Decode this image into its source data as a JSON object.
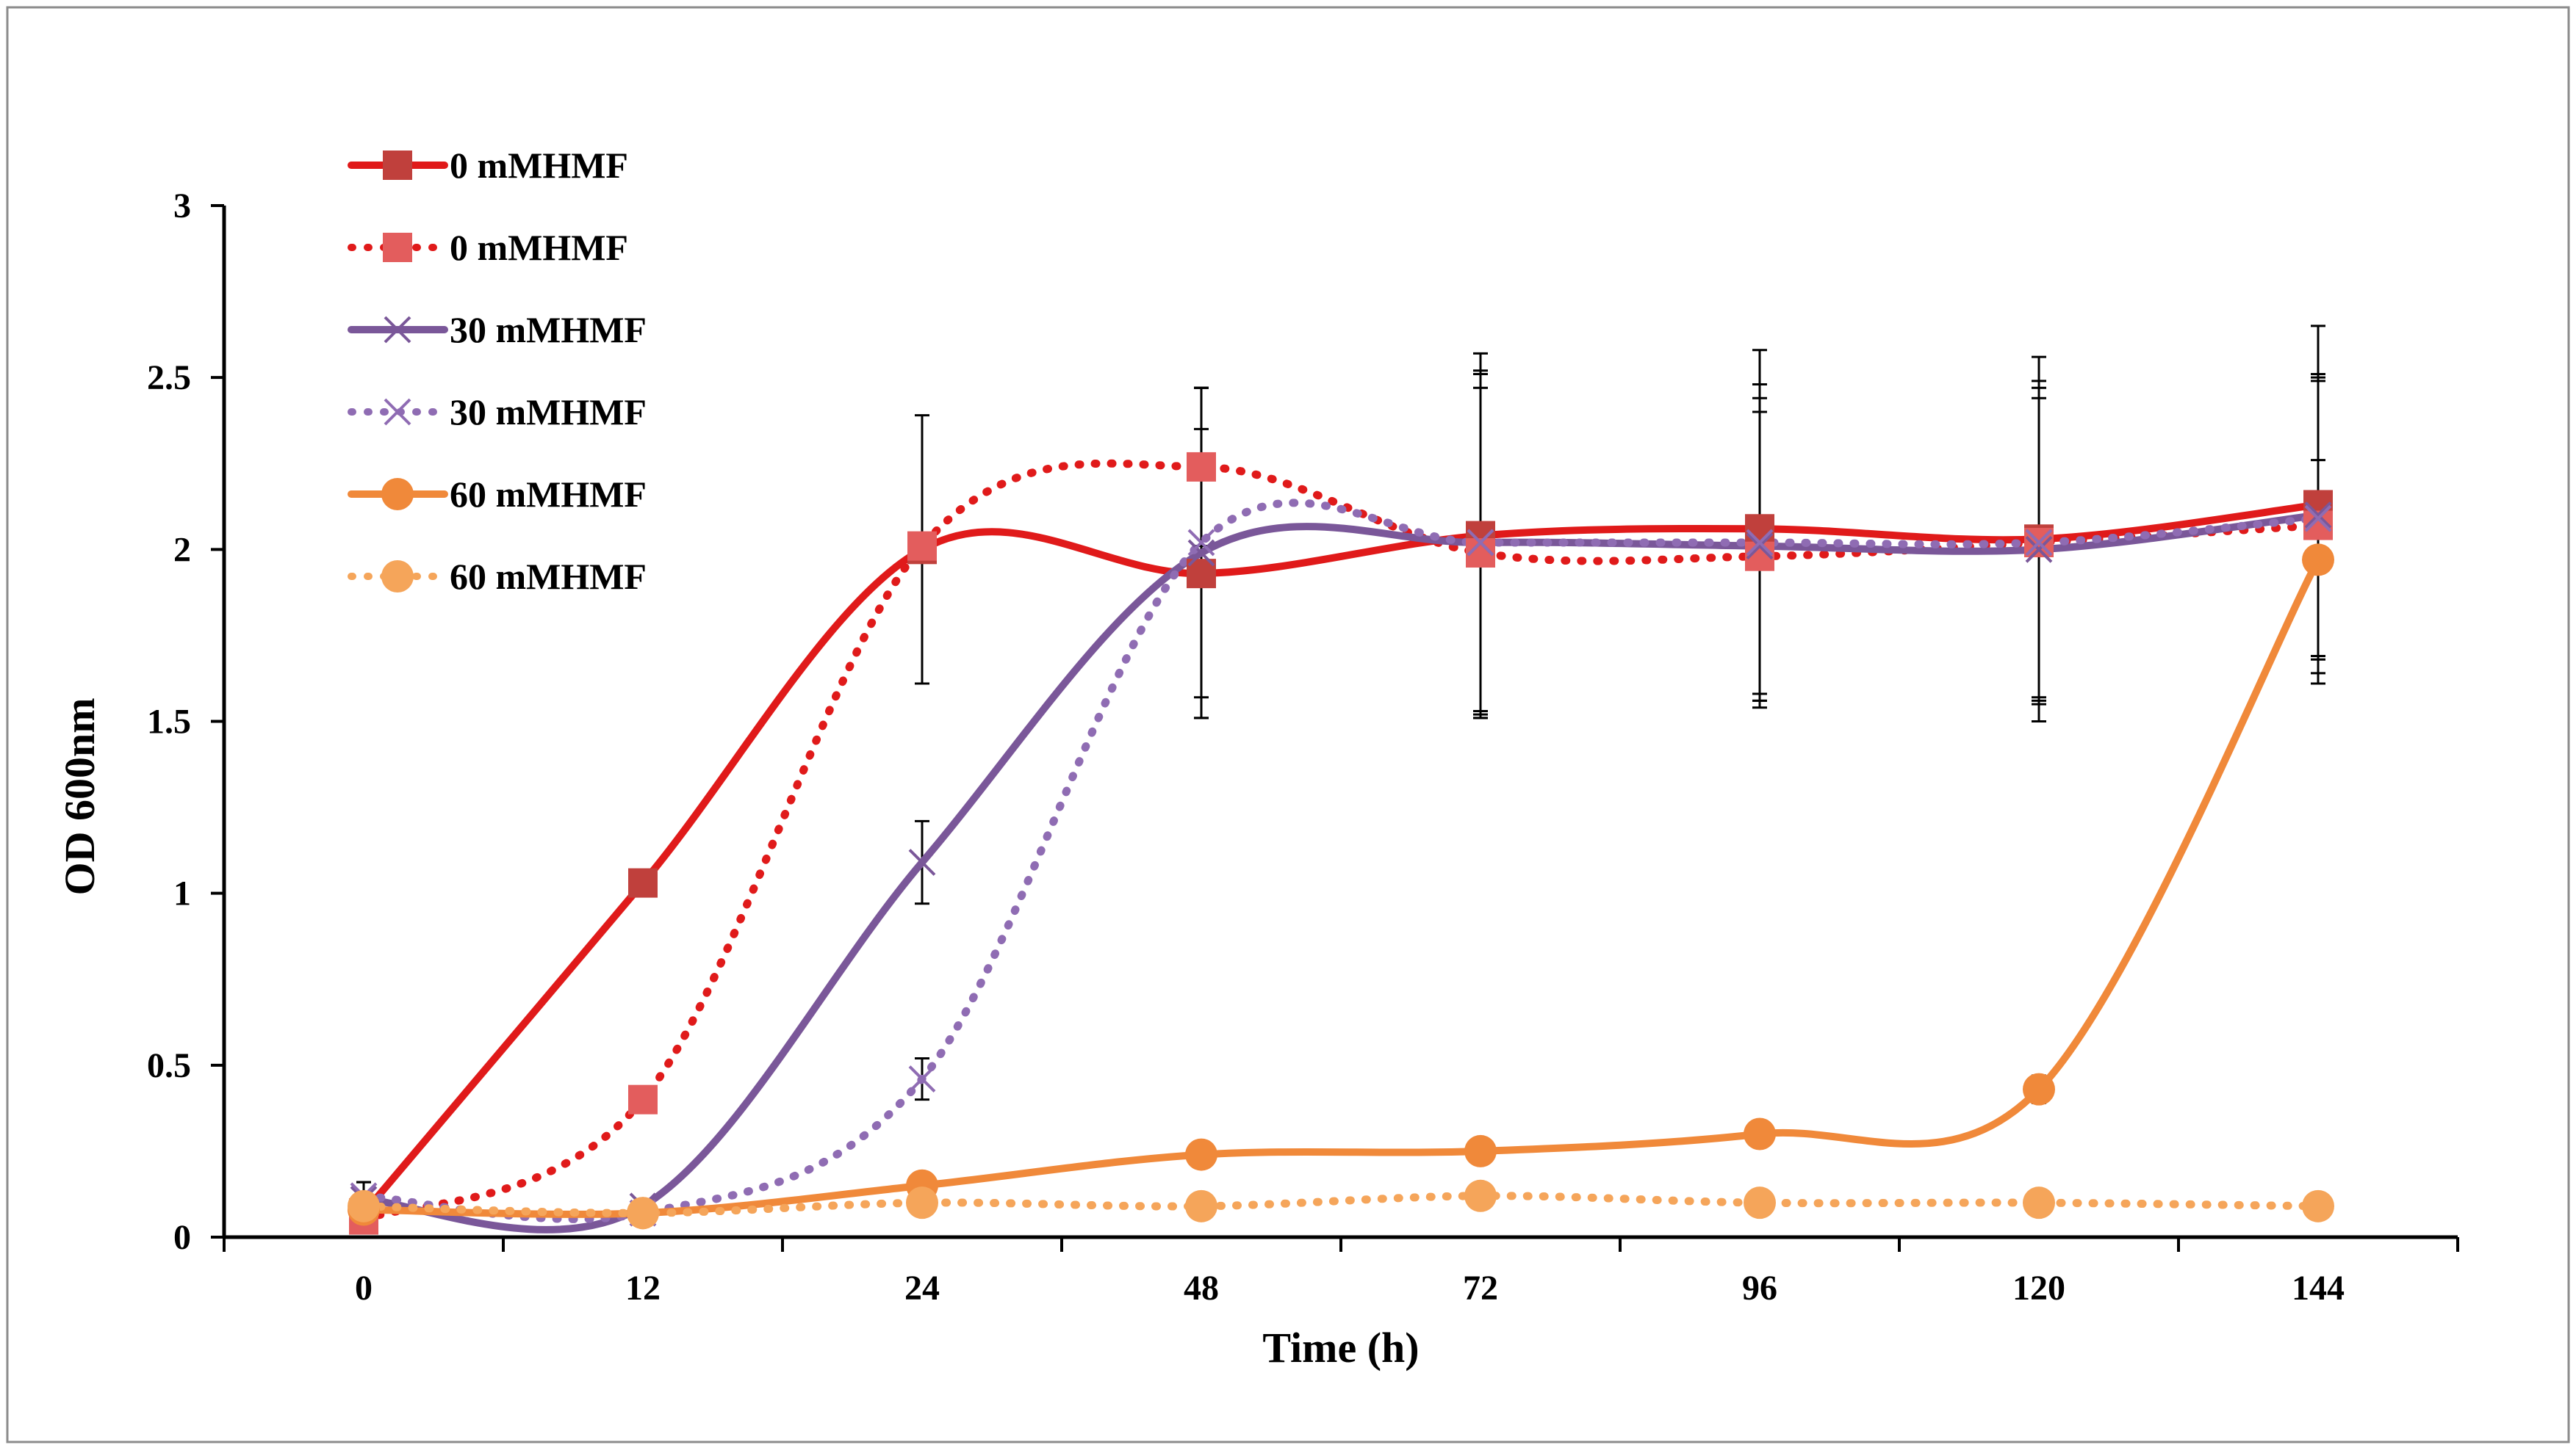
{
  "chart_data": {
    "type": "line",
    "title": "",
    "xlabel": "Time (h)",
    "ylabel": "OD 600nm",
    "categories": [
      "0",
      "12",
      "24",
      "48",
      "72",
      "96",
      "120",
      "144"
    ],
    "y_ticks": [
      "0",
      "0.5",
      "1",
      "1.5",
      "2",
      "2.5",
      "3"
    ],
    "ylim": [
      0,
      3
    ],
    "grid": false,
    "legend_position": "top-left",
    "smoothed": true,
    "series": [
      {
        "name": "0 mMHMF",
        "style": "solid",
        "marker": "square",
        "color": "#e01a1a",
        "marker_color": "#c0403c",
        "values": [
          0.07,
          1.03,
          2.0,
          1.93,
          2.04,
          2.06,
          2.03,
          2.13
        ],
        "error": [
          0,
          0,
          0.39,
          0.42,
          0.53,
          0.52,
          0.53,
          0.52
        ]
      },
      {
        "name": "0 mMHMF",
        "style": "dotted",
        "marker": "square",
        "color": "#e01a1a",
        "marker_color": "#e35d5d",
        "values": [
          0.05,
          0.4,
          2.01,
          2.24,
          1.99,
          1.98,
          2.02,
          2.07
        ],
        "error": [
          0,
          0,
          0,
          0.23,
          0.48,
          0.42,
          0.45,
          0.43
        ]
      },
      {
        "name": "30 mMHMF",
        "style": "solid",
        "marker": "x",
        "color": "#7a5799",
        "marker_color": "#7a5799",
        "values": [
          0.11,
          0.09,
          1.09,
          1.99,
          2.02,
          2.01,
          2.0,
          2.1
        ],
        "error": [
          0.05,
          0,
          0.12,
          0.48,
          0.49,
          0.43,
          0.44,
          0.41
        ]
      },
      {
        "name": "30 mMHMF",
        "style": "dotted",
        "marker": "x",
        "color": "#8f6cb3",
        "marker_color": "#8f6cb3",
        "values": [
          0.12,
          0.07,
          0.46,
          2.02,
          2.02,
          2.02,
          2.02,
          2.09
        ],
        "error": [
          0.04,
          0,
          0.06,
          0.45,
          0.5,
          0.46,
          0.47,
          0.4
        ]
      },
      {
        "name": "60 mMHMF",
        "style": "solid",
        "marker": "circle",
        "color": "#f0893a",
        "marker_color": "#f0893a",
        "values": [
          0.08,
          0.07,
          0.15,
          0.24,
          0.25,
          0.3,
          0.43,
          1.97
        ],
        "error": [
          0,
          0,
          0,
          0,
          0,
          0,
          0.04,
          0.29
        ]
      },
      {
        "name": "60 mMHMF",
        "style": "dotted",
        "marker": "circle",
        "color": "#f5a55a",
        "marker_color": "#f5a55a",
        "values": [
          0.09,
          0.07,
          0.1,
          0.09,
          0.12,
          0.1,
          0.1,
          0.09
        ],
        "error": [
          0,
          0,
          0,
          0,
          0,
          0.03,
          0,
          0
        ]
      }
    ]
  }
}
